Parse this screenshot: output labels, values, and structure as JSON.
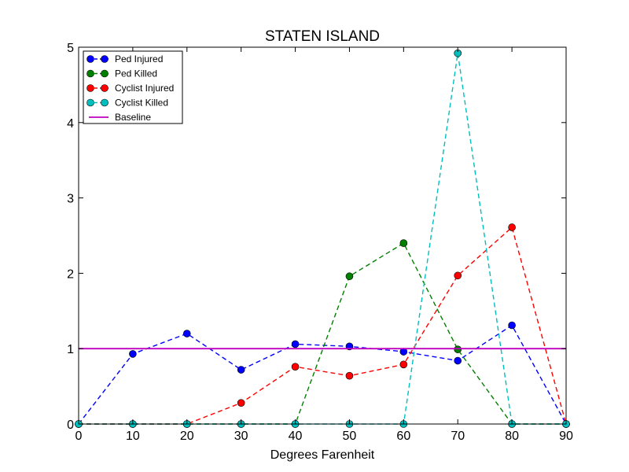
{
  "chart_data": {
    "type": "line",
    "title": "STATEN ISLAND",
    "xlabel": "Degrees Farenheit",
    "ylabel": "",
    "xlim": [
      0,
      90
    ],
    "ylim": [
      0,
      5
    ],
    "xticks": [
      "0",
      "10",
      "20",
      "30",
      "40",
      "50",
      "60",
      "70",
      "80",
      "90"
    ],
    "yticks": [
      "0",
      "1",
      "2",
      "3",
      "4",
      "5"
    ],
    "grid": false,
    "legend_position": "top-left",
    "x": [
      0,
      10,
      20,
      30,
      40,
      50,
      60,
      70,
      80,
      90
    ],
    "series": [
      {
        "name": "Ped Injured",
        "color": "#0000ff",
        "style": "dashed-markers",
        "values": [
          0.0,
          0.93,
          1.2,
          0.72,
          1.06,
          1.03,
          0.96,
          0.84,
          1.31,
          0.0
        ]
      },
      {
        "name": "Ped Killed",
        "color": "#008000",
        "style": "dashed-markers",
        "values": [
          0.0,
          0.0,
          0.0,
          0.0,
          0.0,
          1.96,
          2.4,
          0.99,
          0.0,
          0.0
        ]
      },
      {
        "name": "Cyclist Injured",
        "color": "#ff0000",
        "style": "dashed-markers",
        "values": [
          0.0,
          0.0,
          0.0,
          0.28,
          0.76,
          0.64,
          0.79,
          1.97,
          2.61,
          0.0
        ]
      },
      {
        "name": "Cyclist Killed",
        "color": "#00bfbf",
        "style": "dashed-markers",
        "values": [
          0.0,
          0.0,
          0.0,
          0.0,
          0.0,
          0.0,
          0.0,
          4.92,
          0.0,
          0.0
        ]
      },
      {
        "name": "Baseline",
        "color": "#bf00bf",
        "style": "solid",
        "values": [
          1,
          1,
          1,
          1,
          1,
          1,
          1,
          1,
          1,
          1
        ]
      }
    ]
  }
}
